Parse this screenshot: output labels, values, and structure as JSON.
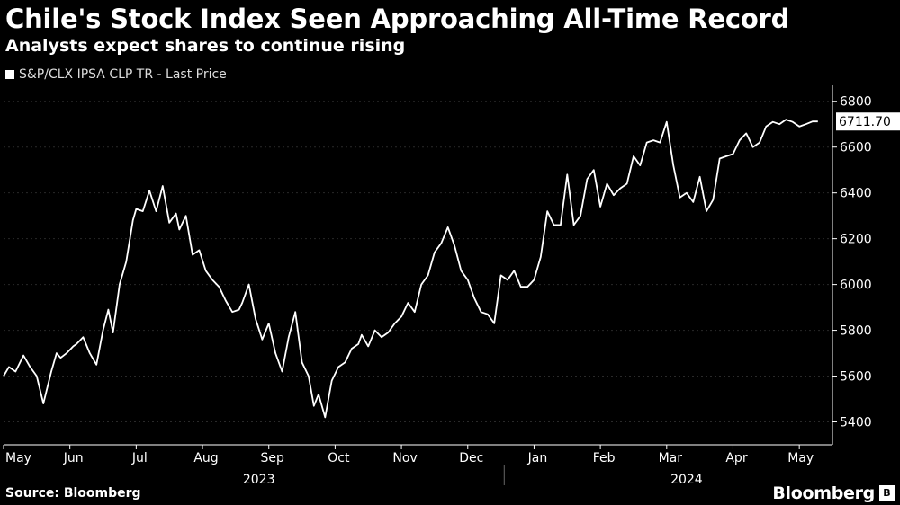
{
  "header": {
    "title": "Chile's Stock Index Seen Approaching All-Time Record",
    "subtitle": "Analysts expect shares to continue rising"
  },
  "legend": {
    "label": "S&P/CLX IPSA CLP TR - Last Price"
  },
  "footer": {
    "source": "Source: Bloomberg",
    "brand": "Bloomberg"
  },
  "colors": {
    "background": "#000000",
    "line": "#ffffff"
  },
  "chart_data": {
    "type": "line",
    "title": "Chile's Stock Index Seen Approaching All-Time Record",
    "subtitle": "Analysts expect shares to continue rising",
    "series_name": "S&P/CLX IPSA CLP TR - Last Price",
    "last_value": 6711.7,
    "last_value_label": "6711.70",
    "ylim": [
      5300,
      6850
    ],
    "y_ticks": [
      5400,
      5600,
      5800,
      6000,
      6200,
      6400,
      6600,
      6800
    ],
    "y_tick_labels": [
      "5400",
      "5600",
      "5800",
      "6000",
      "6200",
      "6400",
      "6600",
      "6800"
    ],
    "x_range": [
      0,
      12.5
    ],
    "x_months": [
      "May",
      "Jun",
      "Jul",
      "Aug",
      "Sep",
      "Oct",
      "Nov",
      "Dec",
      "Jan",
      "Feb",
      "Mar",
      "Apr",
      "May"
    ],
    "x_years": [
      {
        "label": "2023",
        "center": 3.85
      },
      {
        "label": "2024",
        "center": 10.3
      }
    ],
    "year_divider": 7.55,
    "x": [
      0,
      0.08,
      0.18,
      0.3,
      0.4,
      0.5,
      0.6,
      0.72,
      0.8,
      0.86,
      0.95,
      1.05,
      1.1,
      1.2,
      1.3,
      1.4,
      1.5,
      1.58,
      1.65,
      1.75,
      1.85,
      1.95,
      2.0,
      2.1,
      2.2,
      2.3,
      2.4,
      2.5,
      2.6,
      2.65,
      2.75,
      2.85,
      2.95,
      3.05,
      3.15,
      3.25,
      3.35,
      3.45,
      3.55,
      3.6,
      3.7,
      3.8,
      3.9,
      4.0,
      4.1,
      4.2,
      4.3,
      4.4,
      4.5,
      4.6,
      4.68,
      4.75,
      4.85,
      4.95,
      5.05,
      5.15,
      5.25,
      5.35,
      5.4,
      5.5,
      5.6,
      5.7,
      5.8,
      5.9,
      6.0,
      6.1,
      6.2,
      6.3,
      6.4,
      6.5,
      6.6,
      6.7,
      6.8,
      6.9,
      7.0,
      7.1,
      7.2,
      7.3,
      7.4,
      7.5,
      7.6,
      7.7,
      7.8,
      7.9,
      8.0,
      8.1,
      8.2,
      8.3,
      8.4,
      8.5,
      8.6,
      8.7,
      8.8,
      8.9,
      9.0,
      9.1,
      9.2,
      9.3,
      9.4,
      9.5,
      9.6,
      9.7,
      9.8,
      9.9,
      10.0,
      10.1,
      10.2,
      10.3,
      10.4,
      10.5,
      10.6,
      10.7,
      10.8,
      10.9,
      11.0,
      11.1,
      11.2,
      11.3,
      11.4,
      11.5,
      11.6,
      11.7,
      11.8,
      11.9,
      12.0,
      12.1,
      12.2,
      12.28
    ],
    "values": [
      5600,
      5640,
      5620,
      5690,
      5640,
      5600,
      5480,
      5620,
      5700,
      5680,
      5700,
      5730,
      5740,
      5770,
      5700,
      5650,
      5800,
      5890,
      5790,
      6000,
      6100,
      6280,
      6330,
      6320,
      6410,
      6320,
      6430,
      6270,
      6310,
      6240,
      6300,
      6130,
      6150,
      6060,
      6020,
      5990,
      5930,
      5880,
      5890,
      5920,
      6000,
      5850,
      5760,
      5830,
      5700,
      5620,
      5770,
      5880,
      5660,
      5600,
      5470,
      5520,
      5420,
      5580,
      5640,
      5660,
      5720,
      5740,
      5780,
      5730,
      5800,
      5770,
      5790,
      5830,
      5860,
      5920,
      5880,
      6000,
      6040,
      6140,
      6180,
      6250,
      6170,
      6060,
      6020,
      5940,
      5880,
      5870,
      5830,
      6040,
      6020,
      6060,
      5990,
      5990,
      6020,
      6120,
      6320,
      6260,
      6260,
      6480,
      6260,
      6300,
      6460,
      6500,
      6340,
      6440,
      6390,
      6420,
      6440,
      6560,
      6520,
      6620,
      6630,
      6620,
      6710,
      6520,
      6380,
      6400,
      6360,
      6470,
      6320,
      6370,
      6550,
      6560,
      6570,
      6630,
      6660,
      6600,
      6620,
      6690,
      6710,
      6700,
      6720,
      6710,
      6690,
      6700,
      6712,
      6711.7
    ]
  }
}
